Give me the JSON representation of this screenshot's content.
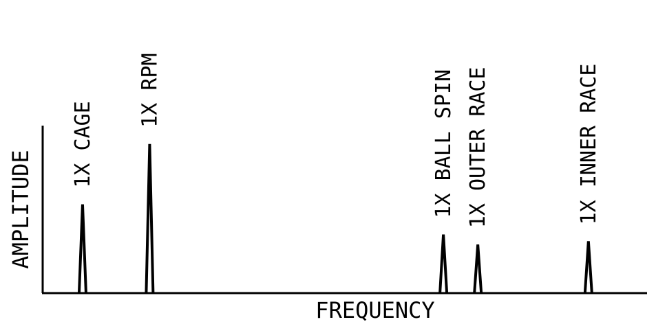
{
  "chart_data": {
    "type": "line",
    "xlabel": "FREQUENCY",
    "ylabel": "AMPLITUDE",
    "grid": false,
    "legend": "none",
    "ylim": [
      0,
      1
    ],
    "peaks": [
      {
        "label": "1X CAGE",
        "frequency": 0.066,
        "amplitude": 0.53
      },
      {
        "label": "1X RPM",
        "frequency": 0.177,
        "amplitude": 0.89
      },
      {
        "label": "1X BALL SPIN",
        "frequency": 0.663,
        "amplitude": 0.35
      },
      {
        "label": "1X OUTER RACE",
        "frequency": 0.72,
        "amplitude": 0.29
      },
      {
        "label": "1X INNER RACE",
        "frequency": 0.903,
        "amplitude": 0.31
      }
    ],
    "xlim": [
      0,
      1
    ]
  },
  "colors": {
    "line": "#000000",
    "background": "#ffffff"
  }
}
